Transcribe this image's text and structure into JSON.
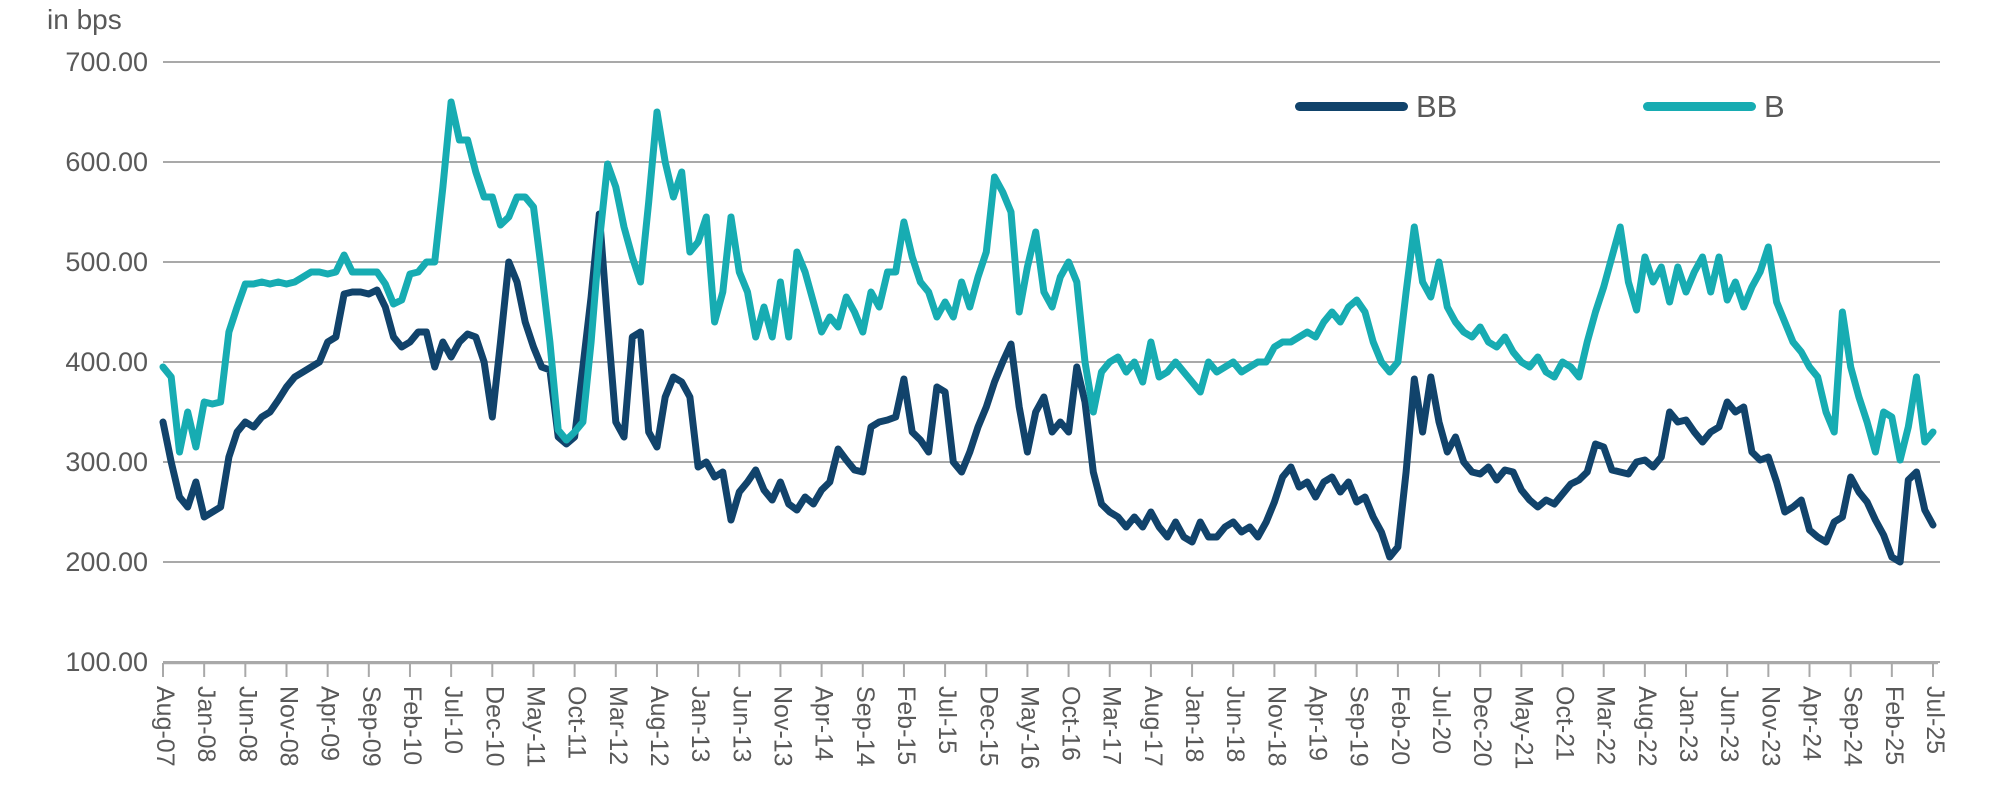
{
  "header": {
    "title": "in bps"
  },
  "legend": {
    "position": "top-right",
    "items": [
      {
        "id": "bb",
        "label": "BB"
      },
      {
        "id": "b",
        "label": "B"
      }
    ]
  },
  "colors": {
    "bb": "#11436b",
    "b": "#17acb2",
    "grid": "#a9a9a9",
    "axis": "#a9a9a9",
    "text": "#595959",
    "background": "#ffffff"
  },
  "chart_data": {
    "type": "line",
    "title": "in bps",
    "ylabel": "in bps",
    "y_unit": "bps",
    "ylim": [
      100,
      700
    ],
    "grid": "horizontal",
    "legend_position": "top-right",
    "y_ticks": [
      {
        "value": 700,
        "label": "700.00"
      },
      {
        "value": 600,
        "label": "600.00"
      },
      {
        "value": 500,
        "label": "500.00"
      },
      {
        "value": 400,
        "label": "400.00"
      },
      {
        "value": 300,
        "label": "300.00"
      },
      {
        "value": 200,
        "label": "200.00"
      },
      {
        "value": 100,
        "label": "100.00"
      }
    ],
    "x_start": "Aug-07",
    "x_end": "Jul-25",
    "x_frequency": "monthly",
    "x_tick_step_months": 5,
    "x_tick_labels": [
      "Aug-07",
      "Jan-08",
      "Jun-08",
      "Nov-08",
      "Apr-09",
      "Sep-09",
      "Feb-10",
      "Jul-10",
      "Dec-10",
      "May-11",
      "Oct-11",
      "Mar-12",
      "Aug-12",
      "Jan-13",
      "Jun-13",
      "Nov-13",
      "Apr-14",
      "Sep-14",
      "Feb-15",
      "Jul-15",
      "Dec-15",
      "May-16",
      "Oct-16",
      "Mar-17",
      "Aug-17",
      "Jan-18",
      "Jun-18",
      "Nov-18",
      "Apr-19",
      "Sep-19",
      "Feb-20",
      "Jul-20",
      "Dec-20",
      "May-21",
      "Oct-21",
      "Mar-22",
      "Aug-22",
      "Jan-23",
      "Jun-23",
      "Nov-23",
      "Apr-24",
      "Sep-24",
      "Feb-25",
      "Jul-25"
    ],
    "series": [
      {
        "name": "BB",
        "color_key": "bb",
        "values": [
          340,
          300,
          265,
          255,
          280,
          245,
          250,
          255,
          305,
          330,
          340,
          335,
          345,
          350,
          362,
          375,
          385,
          390,
          395,
          400,
          420,
          425,
          468,
          470,
          470,
          468,
          472,
          455,
          425,
          415,
          420,
          430,
          430,
          395,
          420,
          405,
          420,
          428,
          425,
          400,
          345,
          420,
          500,
          480,
          440,
          415,
          395,
          392,
          325,
          318,
          325,
          395,
          465,
          548,
          440,
          340,
          325,
          425,
          430,
          330,
          315,
          365,
          385,
          380,
          365,
          295,
          300,
          285,
          290,
          242,
          270,
          280,
          292,
          272,
          262,
          280,
          258,
          252,
          265,
          258,
          272,
          280,
          313,
          302,
          292,
          290,
          335,
          340,
          342,
          345,
          383,
          330,
          322,
          310,
          375,
          370,
          300,
          290,
          310,
          335,
          355,
          380,
          400,
          418,
          355,
          310,
          350,
          365,
          330,
          340,
          330,
          395,
          360,
          290,
          258,
          250,
          245,
          235,
          245,
          235,
          250,
          235,
          225,
          240,
          225,
          220,
          240,
          225,
          225,
          235,
          240,
          230,
          235,
          225,
          240,
          260,
          285,
          295,
          275,
          280,
          265,
          280,
          285,
          270,
          280,
          260,
          265,
          245,
          230,
          205,
          215,
          290,
          383,
          330,
          385,
          340,
          310,
          325,
          300,
          290,
          288,
          295,
          282,
          292,
          290,
          272,
          262,
          255,
          262,
          258,
          268,
          278,
          282,
          290,
          318,
          315,
          292,
          290,
          288,
          300,
          302,
          295,
          305,
          350,
          340,
          342,
          330,
          320,
          330,
          335,
          360,
          350,
          355,
          310,
          302,
          305,
          280,
          250,
          255,
          262,
          232,
          225,
          220,
          240,
          245,
          285,
          270,
          260,
          242,
          227,
          205,
          200,
          282,
          290,
          252,
          237
        ]
      },
      {
        "name": "B",
        "color_key": "b",
        "values": [
          395,
          385,
          310,
          350,
          315,
          360,
          358,
          360,
          430,
          455,
          478,
          478,
          480,
          478,
          480,
          478,
          480,
          485,
          490,
          490,
          488,
          490,
          507,
          490,
          490,
          490,
          490,
          478,
          458,
          462,
          488,
          490,
          500,
          500,
          575,
          660,
          622,
          622,
          590,
          565,
          565,
          537,
          545,
          565,
          565,
          555,
          490,
          420,
          332,
          322,
          330,
          340,
          420,
          520,
          598,
          575,
          535,
          505,
          480,
          560,
          650,
          600,
          565,
          590,
          510,
          520,
          545,
          440,
          470,
          545,
          490,
          470,
          425,
          455,
          425,
          480,
          425,
          510,
          490,
          460,
          430,
          445,
          435,
          465,
          450,
          430,
          470,
          455,
          490,
          490,
          540,
          505,
          480,
          470,
          445,
          460,
          445,
          480,
          455,
          485,
          510,
          585,
          570,
          550,
          450,
          495,
          530,
          470,
          455,
          485,
          500,
          480,
          400,
          350,
          390,
          400,
          405,
          390,
          400,
          380,
          420,
          385,
          390,
          400,
          390,
          380,
          370,
          400,
          390,
          395,
          400,
          390,
          395,
          400,
          400,
          415,
          420,
          420,
          425,
          430,
          425,
          440,
          450,
          440,
          455,
          462,
          450,
          420,
          400,
          390,
          400,
          470,
          535,
          480,
          465,
          500,
          455,
          440,
          430,
          425,
          435,
          420,
          415,
          425,
          410,
          400,
          395,
          405,
          390,
          385,
          400,
          395,
          385,
          420,
          450,
          475,
          505,
          535,
          480,
          452,
          505,
          480,
          495,
          460,
          495,
          470,
          490,
          505,
          470,
          505,
          462,
          480,
          455,
          475,
          490,
          515,
          460,
          440,
          420,
          410,
          395,
          385,
          350,
          330,
          450,
          395,
          365,
          340,
          310,
          350,
          345,
          302,
          335,
          385,
          320,
          330
        ]
      }
    ]
  }
}
